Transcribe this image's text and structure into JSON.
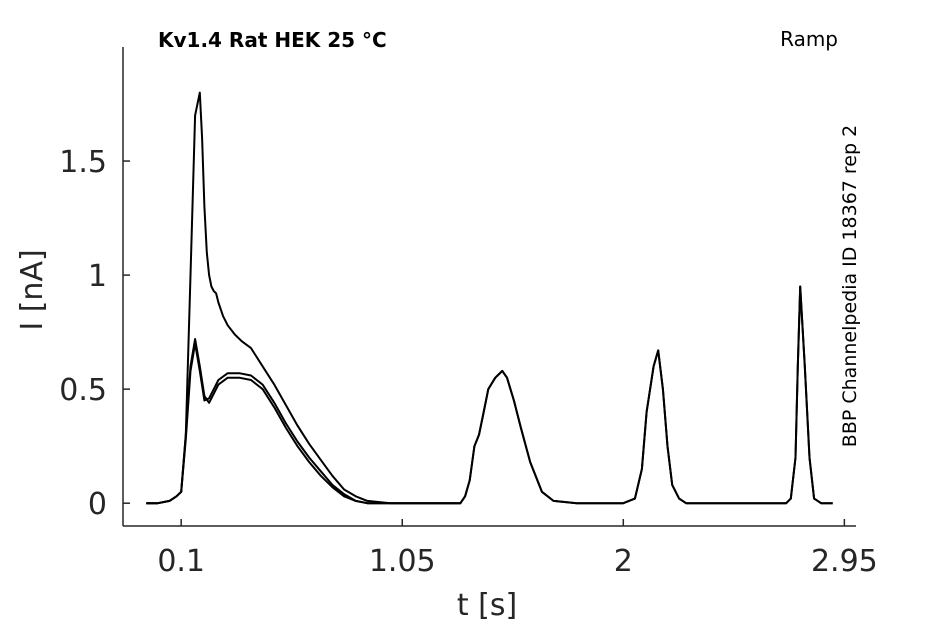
{
  "chart_data": {
    "type": "line",
    "title": "Kv1.4  Rat  HEK  25 °C",
    "protocol_label": "Ramp",
    "side_label": "BBP Channelpedia ID 18367 rep 2",
    "xlabel": "t [s]",
    "ylabel": "I [nA]",
    "xlim": [
      -0.15,
      3.0
    ],
    "ylim": [
      -0.1,
      2.0
    ],
    "xticks": [
      0.1,
      1.05,
      2,
      2.95
    ],
    "xtick_labels": [
      "0.1",
      "1.05",
      "2",
      "2.95"
    ],
    "yticks": [
      0,
      0.5,
      1,
      1.5
    ],
    "ytick_labels": [
      "0",
      "0.5",
      "1",
      "1.5"
    ],
    "grid": false,
    "legend": "none",
    "color": "#000000",
    "series": [
      {
        "x": [
          -0.05,
          0.0,
          0.05,
          0.08,
          0.1,
          0.12,
          0.14,
          0.16,
          0.18,
          0.19,
          0.2,
          0.21,
          0.22,
          0.23,
          0.24,
          0.25,
          0.26,
          0.28,
          0.3,
          0.33,
          0.36,
          0.4,
          0.45,
          0.5,
          0.55,
          0.6,
          0.65,
          0.7,
          0.75,
          0.8,
          0.85,
          0.9,
          1.0,
          1.1,
          1.2,
          1.3,
          1.32,
          1.34,
          1.36,
          1.38,
          1.4,
          1.42,
          1.45,
          1.48,
          1.5,
          1.53,
          1.56,
          1.6,
          1.65,
          1.7,
          1.8,
          1.9,
          2.0,
          2.05,
          2.08,
          2.1,
          2.13,
          2.15,
          2.17,
          2.19,
          2.21,
          2.24,
          2.27,
          2.3,
          2.4,
          2.5,
          2.6,
          2.7,
          2.72,
          2.74,
          2.75,
          2.76,
          2.78,
          2.8,
          2.82,
          2.85,
          2.9
        ],
        "y": [
          0.0,
          0.0,
          0.01,
          0.03,
          0.05,
          0.3,
          1.0,
          1.7,
          1.8,
          1.6,
          1.3,
          1.1,
          1.0,
          0.95,
          0.93,
          0.92,
          0.88,
          0.82,
          0.78,
          0.74,
          0.71,
          0.68,
          0.6,
          0.52,
          0.43,
          0.34,
          0.26,
          0.19,
          0.12,
          0.06,
          0.03,
          0.01,
          0.0,
          0.0,
          0.0,
          0.0,
          0.03,
          0.1,
          0.25,
          0.3,
          0.4,
          0.5,
          0.55,
          0.58,
          0.55,
          0.45,
          0.33,
          0.18,
          0.05,
          0.01,
          0.0,
          0.0,
          0.0,
          0.02,
          0.15,
          0.4,
          0.6,
          0.67,
          0.5,
          0.25,
          0.08,
          0.02,
          0.0,
          0.0,
          0.0,
          0.0,
          0.0,
          0.0,
          0.02,
          0.2,
          0.6,
          0.95,
          0.6,
          0.2,
          0.02,
          0.0,
          0.0
        ]
      },
      {
        "x": [
          -0.05,
          0.0,
          0.05,
          0.08,
          0.1,
          0.12,
          0.14,
          0.16,
          0.18,
          0.2,
          0.22,
          0.24,
          0.26,
          0.3,
          0.35,
          0.4,
          0.45,
          0.5,
          0.55,
          0.6,
          0.65,
          0.7,
          0.75,
          0.8,
          0.85,
          0.9,
          1.0,
          1.1,
          1.2,
          1.3,
          1.32,
          1.34,
          1.36,
          1.38,
          1.4,
          1.42,
          1.45,
          1.48,
          1.5,
          1.53,
          1.56,
          1.6,
          1.65,
          1.7,
          1.8,
          1.9,
          2.0,
          2.05,
          2.08,
          2.1,
          2.13,
          2.15,
          2.17,
          2.19,
          2.21,
          2.24,
          2.27,
          2.3,
          2.4,
          2.5,
          2.6,
          2.7,
          2.72,
          2.74,
          2.75,
          2.76,
          2.78,
          2.8,
          2.82,
          2.85,
          2.9
        ],
        "y": [
          0.0,
          0.0,
          0.01,
          0.03,
          0.05,
          0.3,
          0.6,
          0.72,
          0.6,
          0.47,
          0.44,
          0.48,
          0.52,
          0.55,
          0.55,
          0.54,
          0.5,
          0.42,
          0.33,
          0.25,
          0.18,
          0.12,
          0.07,
          0.03,
          0.01,
          0.0,
          0.0,
          0.0,
          0.0,
          0.0,
          0.03,
          0.1,
          0.25,
          0.3,
          0.4,
          0.5,
          0.55,
          0.58,
          0.55,
          0.45,
          0.33,
          0.18,
          0.05,
          0.01,
          0.0,
          0.0,
          0.0,
          0.02,
          0.15,
          0.4,
          0.6,
          0.67,
          0.5,
          0.25,
          0.08,
          0.02,
          0.0,
          0.0,
          0.0,
          0.0,
          0.0,
          0.0,
          0.02,
          0.2,
          0.6,
          0.95,
          0.6,
          0.2,
          0.02,
          0.0,
          0.0
        ]
      },
      {
        "x": [
          -0.05,
          0.0,
          0.05,
          0.08,
          0.1,
          0.12,
          0.14,
          0.16,
          0.18,
          0.2,
          0.22,
          0.24,
          0.26,
          0.3,
          0.35,
          0.4,
          0.45,
          0.5,
          0.55,
          0.6,
          0.65,
          0.7,
          0.75,
          0.8,
          0.85,
          0.9,
          1.0,
          1.1,
          1.2,
          1.3
        ],
        "y": [
          0.0,
          0.0,
          0.01,
          0.03,
          0.05,
          0.28,
          0.58,
          0.7,
          0.58,
          0.45,
          0.46,
          0.5,
          0.54,
          0.57,
          0.57,
          0.56,
          0.52,
          0.44,
          0.35,
          0.27,
          0.2,
          0.14,
          0.08,
          0.04,
          0.01,
          0.0,
          0.0,
          0.0,
          0.0,
          0.0
        ]
      }
    ]
  }
}
